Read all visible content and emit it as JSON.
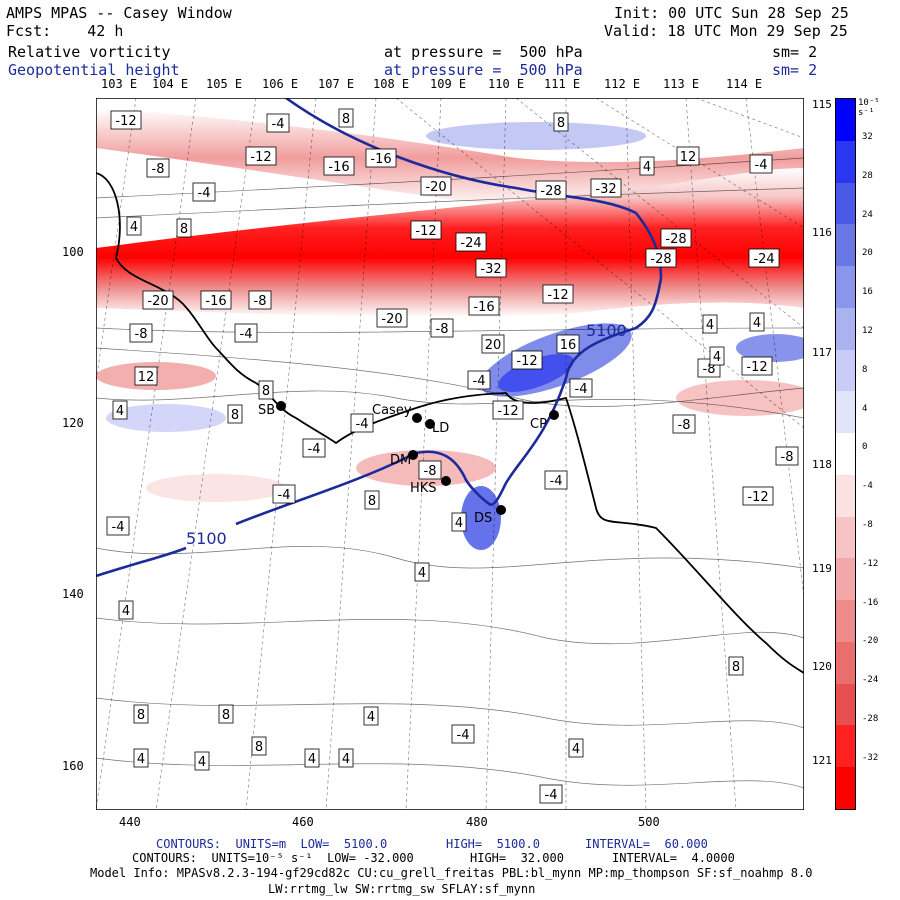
{
  "header": {
    "title": "AMPS MPAS -- Casey Window",
    "forecast": "Fcst:    42 h",
    "init": "Init: 00 UTC Sun 28 Sep 25",
    "valid": "Valid: 18 UTC Mon 29 Sep 25",
    "field1": {
      "name": "Relative vorticity",
      "level": "at pressure =  500 hPa",
      "sm": "sm= 2"
    },
    "field2": {
      "name": "Geopotential height",
      "level": "at pressure =  500 hPa",
      "sm": "sm= 2"
    }
  },
  "map": {
    "top_longitudes": [
      "103 E",
      "104 E",
      "105 E",
      "106 E",
      "107 E",
      "108 E",
      "109 E",
      "110 E",
      "111 E",
      "112 E",
      "113 E",
      "114 E"
    ],
    "right_latitudes": [
      "115 E",
      "116 E",
      "117 E",
      "118 E",
      "119 E",
      "120 E",
      "121 E"
    ],
    "y_ticks": [
      "100",
      "120",
      "140",
      "160"
    ],
    "x_ticks": [
      "440",
      "460",
      "480",
      "500"
    ],
    "stations": [
      {
        "id": "SB",
        "label": "SB"
      },
      {
        "id": "Casey",
        "label": "Casey"
      },
      {
        "id": "LD",
        "label": "LD"
      },
      {
        "id": "CP",
        "label": "CP"
      },
      {
        "id": "DM",
        "label": "DM"
      },
      {
        "id": "HKS",
        "label": "HKS"
      },
      {
        "id": "DS",
        "label": "DS"
      }
    ],
    "height_contour_label": "5100",
    "vorticity_labels": [
      "-12",
      "-4",
      "8",
      "8",
      "-8",
      "-12",
      "-16",
      "-16",
      "-20",
      "-28",
      "-32",
      "4",
      "12",
      "-4",
      "-4",
      "4",
      "8",
      "-12",
      "-24",
      "-28",
      "-32",
      "-28",
      "-24",
      "-20",
      "-16",
      "-8",
      "-20",
      "-16",
      "-12",
      "-8",
      "-4",
      "-8",
      "4",
      "20",
      "16",
      "-12",
      "12",
      "-4",
      "8",
      "-8",
      "-12",
      "4",
      "4",
      "-4",
      "-12",
      "-8",
      "4",
      "8",
      "-4",
      "-4",
      "-8",
      "-4",
      "8",
      "-12",
      "-8",
      "-4",
      "4",
      "4",
      "-4",
      "4",
      "8",
      "8",
      "8",
      "4",
      "-4",
      "8",
      "4",
      "4",
      "4",
      "4",
      "4",
      "-4",
      "4",
      "8",
      "4"
    ]
  },
  "colorbar": {
    "units": "10⁻⁵ s⁻¹",
    "ticks": [
      "32",
      "28",
      "24",
      "20",
      "16",
      "12",
      "8",
      "4",
      "0",
      "-4",
      "-8",
      "-12",
      "-16",
      "-20",
      "-24",
      "-28",
      "-32"
    ],
    "colors": [
      "#0000ff",
      "#2a36f0",
      "#4a5ae6",
      "#6a78e6",
      "#8a96ec",
      "#aab2f0",
      "#c8ccf6",
      "#e2e4fa",
      "#ffffff",
      "#fbe1e1",
      "#f6c4c4",
      "#f2a8a8",
      "#ee8c8c",
      "#ea6e6e",
      "#e65050",
      "#ff2020",
      "#ff0000"
    ]
  },
  "footer": {
    "line1a": "CONTOURS:  UNITS=m  LOW=  5100.0",
    "line1b": "HIGH=  5100.0",
    "line1c": "INTERVAL=  60.000",
    "line2a": "CONTOURS:  UNITS=10⁻⁵ s⁻¹  LOW= -32.000",
    "line2b": "HIGH=  32.000",
    "line2c": "INTERVAL=  4.0000",
    "model_info": "Model Info: MPASv8.2.3-194-gf29cd82c CU:cu_grell_freitas PBL:bl_mynn MP:mp_thompson SF:sf_noahmp 8.0",
    "model_info2": "LW:rrtmg_lw SW:rrtmg_sw SFLAY:sf_mynn"
  }
}
